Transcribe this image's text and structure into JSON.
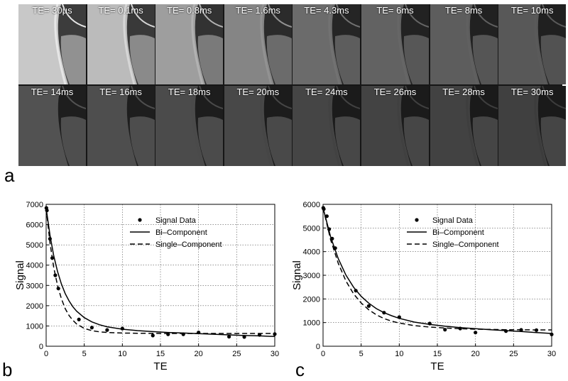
{
  "panel_a": {
    "letter": "a",
    "rows": [
      [
        {
          "label": "TE= 30µs",
          "brightness": 1.0
        },
        {
          "label": "TE= 0.1ms",
          "brightness": 0.92
        },
        {
          "label": "TE= 0.8ms",
          "brightness": 0.74
        },
        {
          "label": "TE= 1.6ms",
          "brightness": 0.58
        },
        {
          "label": "TE= 4.3ms",
          "brightness": 0.42
        },
        {
          "label": "TE= 6ms",
          "brightness": 0.36
        },
        {
          "label": "TE= 8ms",
          "brightness": 0.33
        },
        {
          "label": "TE= 10ms",
          "brightness": 0.3
        }
      ],
      [
        {
          "label": "TE= 14ms",
          "brightness": 0.26
        },
        {
          "label": "TE= 16ms",
          "brightness": 0.24
        },
        {
          "label": "TE= 18ms",
          "brightness": 0.22
        },
        {
          "label": "TE= 20ms",
          "brightness": 0.2
        },
        {
          "label": "TE= 24ms",
          "brightness": 0.18
        },
        {
          "label": "TE= 26ms",
          "brightness": 0.17
        },
        {
          "label": "TE= 28ms",
          "brightness": 0.16
        },
        {
          "label": "TE= 30ms",
          "brightness": 0.15
        }
      ]
    ]
  },
  "chart_data": [
    {
      "type": "scatter",
      "panel": "b",
      "xlabel": "TE",
      "ylabel": "Signal",
      "xlim": [
        0,
        30
      ],
      "ylim": [
        0,
        7000
      ],
      "xticks": [
        0,
        5,
        10,
        15,
        20,
        25,
        30
      ],
      "yticks": [
        0,
        1000,
        2000,
        3000,
        4000,
        5000,
        6000,
        7000
      ],
      "grid": true,
      "legend_position": "top-right",
      "series": [
        {
          "name": "Signal Data",
          "kind": "points",
          "x": [
            0.03,
            0.1,
            0.5,
            0.8,
            1.2,
            1.6,
            4.3,
            6,
            8,
            10,
            14,
            16,
            18,
            20,
            24,
            26,
            28,
            30
          ],
          "y": [
            6820,
            6700,
            5300,
            4350,
            3500,
            2850,
            1320,
            920,
            800,
            870,
            530,
            590,
            590,
            680,
            470,
            460,
            560,
            600
          ]
        },
        {
          "name": "Bi–Component",
          "kind": "line",
          "style": "solid",
          "x": [
            0,
            0.5,
            1,
            1.5,
            2,
            2.5,
            3,
            3.5,
            4,
            5,
            6,
            7,
            8,
            10,
            12,
            14,
            16,
            18,
            20,
            22,
            24,
            26,
            28,
            30
          ],
          "y": [
            6800,
            5480,
            4460,
            3680,
            3070,
            2600,
            2240,
            1950,
            1730,
            1410,
            1200,
            1060,
            960,
            840,
            770,
            720,
            680,
            650,
            620,
            590,
            560,
            530,
            510,
            480
          ]
        },
        {
          "name": "Single–Component",
          "kind": "line",
          "style": "dashed",
          "x": [
            0,
            0.5,
            1,
            1.5,
            2,
            2.5,
            3,
            3.5,
            4,
            5,
            6,
            7,
            8,
            10,
            12,
            14,
            16,
            18,
            20,
            22,
            24,
            26,
            28,
            30
          ],
          "y": [
            6800,
            5100,
            3880,
            2990,
            2340,
            1860,
            1520,
            1280,
            1100,
            880,
            770,
            710,
            680,
            650,
            640,
            635,
            630,
            630,
            630,
            630,
            630,
            630,
            630,
            630
          ]
        }
      ]
    },
    {
      "type": "scatter",
      "panel": "c",
      "xlabel": "TE",
      "ylabel": "Signal",
      "xlim": [
        0,
        30
      ],
      "ylim": [
        0,
        6000
      ],
      "xticks": [
        0,
        5,
        10,
        15,
        20,
        25,
        30
      ],
      "yticks": [
        0,
        1000,
        2000,
        3000,
        4000,
        5000,
        6000
      ],
      "grid": true,
      "legend_position": "top-right",
      "series": [
        {
          "name": "Signal Data",
          "kind": "points",
          "x": [
            0.03,
            0.1,
            0.5,
            0.8,
            1.2,
            1.6,
            4.3,
            6,
            8,
            10,
            14,
            16,
            18,
            20,
            24,
            26,
            28,
            30
          ],
          "y": [
            5850,
            5800,
            5500,
            4950,
            4550,
            4150,
            2350,
            1700,
            1420,
            1230,
            960,
            700,
            750,
            580,
            640,
            690,
            680,
            500
          ]
        },
        {
          "name": "Bi–Component",
          "kind": "line",
          "style": "solid",
          "x": [
            0,
            1,
            2,
            3,
            4,
            5,
            6,
            7,
            8,
            9,
            10,
            12,
            14,
            16,
            18,
            20,
            22,
            24,
            26,
            28,
            30
          ],
          "y": [
            5850,
            4620,
            3700,
            3010,
            2500,
            2110,
            1820,
            1590,
            1420,
            1290,
            1180,
            1020,
            920,
            850,
            790,
            740,
            700,
            660,
            620,
            580,
            540
          ]
        },
        {
          "name": "Single–Component",
          "kind": "line",
          "style": "dashed",
          "x": [
            0,
            1,
            2,
            3,
            4,
            5,
            6,
            7,
            8,
            9,
            10,
            12,
            14,
            16,
            18,
            20,
            22,
            24,
            26,
            28,
            30
          ],
          "y": [
            5850,
            4500,
            3500,
            2760,
            2220,
            1830,
            1540,
            1330,
            1170,
            1060,
            980,
            870,
            810,
            770,
            740,
            720,
            710,
            700,
            695,
            690,
            690
          ]
        }
      ]
    }
  ]
}
